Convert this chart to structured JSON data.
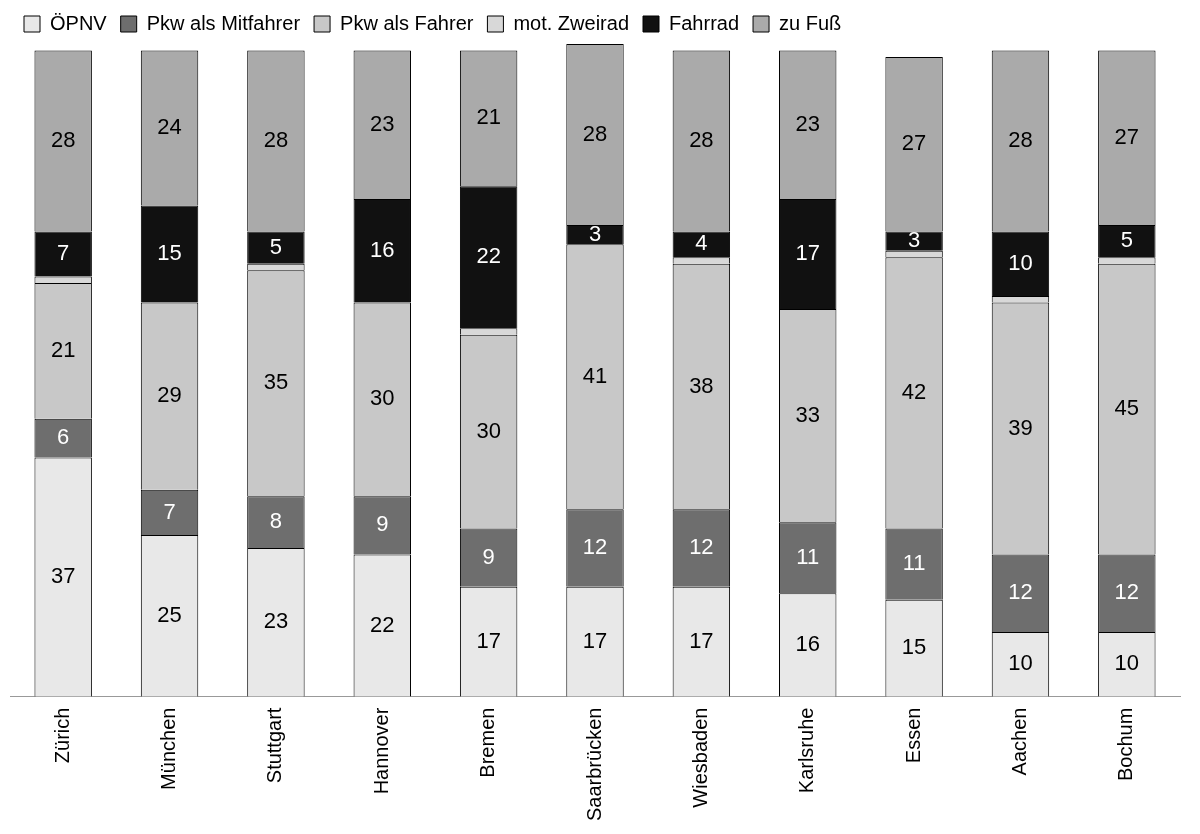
{
  "chart_data": {
    "type": "bar",
    "stacked": true,
    "legend": "top left",
    "grid": false,
    "tick_labels": "x",
    "categories": [
      "Zürich",
      "München",
      "Stuttgart",
      "Hannover",
      "Bremen",
      "Saarbrücken",
      "Wiesbaden",
      "Karlsruhe",
      "Essen",
      "Aachen",
      "Bochum"
    ],
    "series": [
      {
        "name": "ÖPNV",
        "color": "#e8e8e8",
        "values": [
          37,
          25,
          23,
          22,
          17,
          17,
          17,
          16,
          15,
          10,
          10
        ],
        "value_labels": [
          "37",
          "25",
          "23",
          "22",
          "17",
          "17",
          "17",
          "16",
          "15",
          "10",
          "10"
        ]
      },
      {
        "name": "Pkw als Mitfahrer",
        "color": "#6e6e6e",
        "values": [
          6,
          7,
          8,
          9,
          9,
          12,
          12,
          11,
          11,
          12,
          12
        ],
        "value_labels": [
          "6",
          "7",
          "8",
          "9",
          "9",
          "12",
          "12",
          "11",
          "11",
          "12",
          "12"
        ]
      },
      {
        "name": "Pkw als Fahrer",
        "color": "#c8c8c8",
        "values": [
          21,
          29,
          35,
          30,
          30,
          41,
          38,
          33,
          42,
          39,
          45
        ],
        "value_labels": [
          "21",
          "29",
          "35",
          "30",
          "30",
          "41",
          "38",
          "33",
          "42",
          "39",
          "45"
        ]
      },
      {
        "name": "mot. Zweirad",
        "color": "#d8d8d8",
        "values": [
          1,
          0,
          1,
          0,
          1,
          0,
          1,
          0,
          1,
          1,
          1
        ],
        "value_labels": [
          null,
          null,
          null,
          null,
          null,
          null,
          null,
          null,
          null,
          null,
          null
        ]
      },
      {
        "name": "Fahrrad",
        "color": "#111111",
        "values": [
          7,
          15,
          5,
          16,
          22,
          3,
          4,
          17,
          3,
          10,
          5
        ],
        "value_labels": [
          "7",
          "15",
          "5",
          "16",
          "22",
          "3",
          "4",
          "17",
          "3",
          "10",
          "5"
        ]
      },
      {
        "name": "zu Fuß",
        "color": "#aaaaaa",
        "values": [
          28,
          24,
          28,
          23,
          21,
          28,
          28,
          23,
          27,
          28,
          27
        ],
        "value_labels": [
          "28",
          "24",
          "28",
          "23",
          "21",
          "28",
          "28",
          "23",
          "27",
          "28",
          "27"
        ]
      }
    ]
  }
}
